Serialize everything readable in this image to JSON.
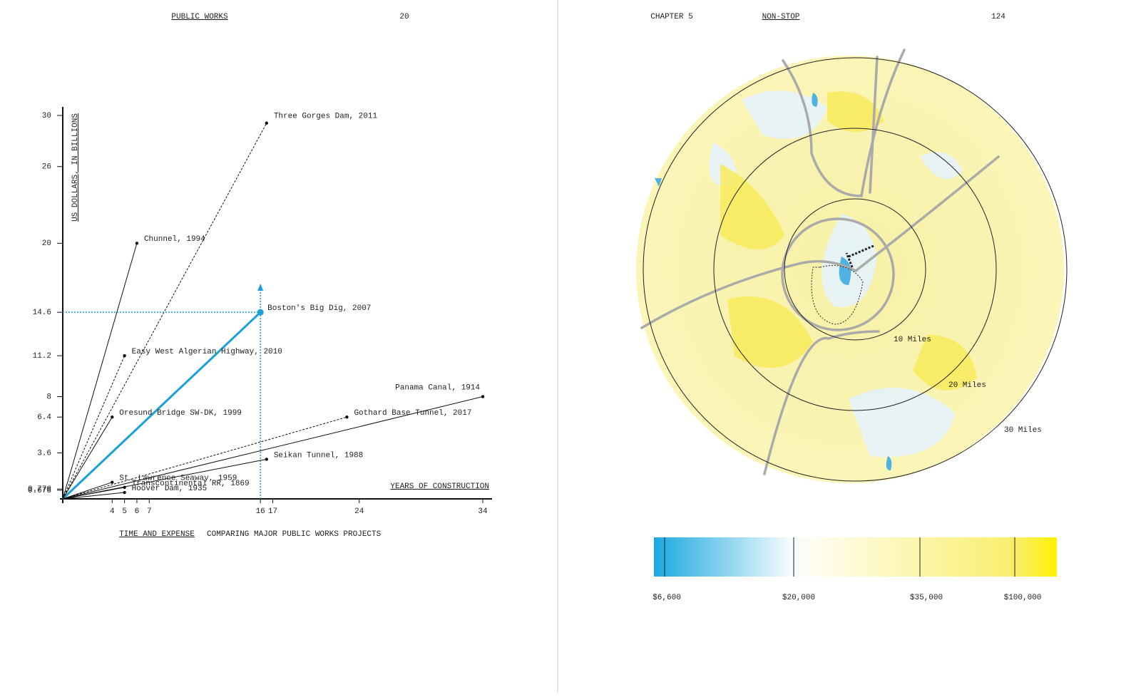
{
  "header_left": {
    "title": "PUBLIC WORKS",
    "page": "20"
  },
  "header_right": {
    "chapter": "CHAPTER 5",
    "title": "NON-STOP",
    "page": "124"
  },
  "chart_data": {
    "type": "origin-lines",
    "y_label": "US DOLLARS, IN BILLIONS",
    "x_label": "YEARS OF CONSTRUCTION",
    "caption_title": "TIME AND EXPENSE",
    "caption": "COMPARING MAJOR PUBLIC WORKS PROJECTS",
    "point_labels": [
      "Three Gorges Dam, 2011",
      "Chunnel, 1994",
      "Boston's Big Dig, 2007",
      "Easy West Algerian Highway, 2010",
      "Oresund Bridge SW-DK, 1999",
      "Panama Canal, 1914",
      "Gothard Base Tunnel, 2017",
      "Seikan Tunnel, 1988",
      "St. Lawrence Seaway, 1959",
      "Transcontinental RR, 1869",
      "Hoover Dam, 1935"
    ],
    "x": [
      16.5,
      6,
      16,
      5,
      4,
      34,
      23,
      16.5,
      4,
      5,
      5
    ],
    "values": [
      29.4,
      20,
      14.6,
      11.2,
      6.4,
      8,
      6.4,
      3.1,
      1.3,
      0.9,
      0.5
    ],
    "colors": [
      "#111",
      "#111",
      "#1a9fd6",
      "#111",
      "#111",
      "#111",
      "#111",
      "#111",
      "#111",
      "#111",
      "#111"
    ],
    "dashed": [
      true,
      false,
      false,
      true,
      false,
      false,
      true,
      false,
      false,
      false,
      false
    ],
    "xlim": [
      0,
      34
    ],
    "ylim": [
      0,
      30
    ],
    "xticks": [
      4,
      5,
      6,
      7,
      16,
      17,
      24,
      34
    ],
    "yticks": [
      0.676,
      {
        "value": 0.77,
        "label": "0.770"
      },
      3.6,
      6.4,
      8,
      11.2,
      14.6,
      20,
      26,
      30
    ]
  },
  "map": {
    "rings": [
      "10 Miles",
      "20 Miles",
      "30 Miles"
    ],
    "legend": [
      "$6,600",
      "$20,000",
      "$35,000",
      "$100,000"
    ]
  }
}
